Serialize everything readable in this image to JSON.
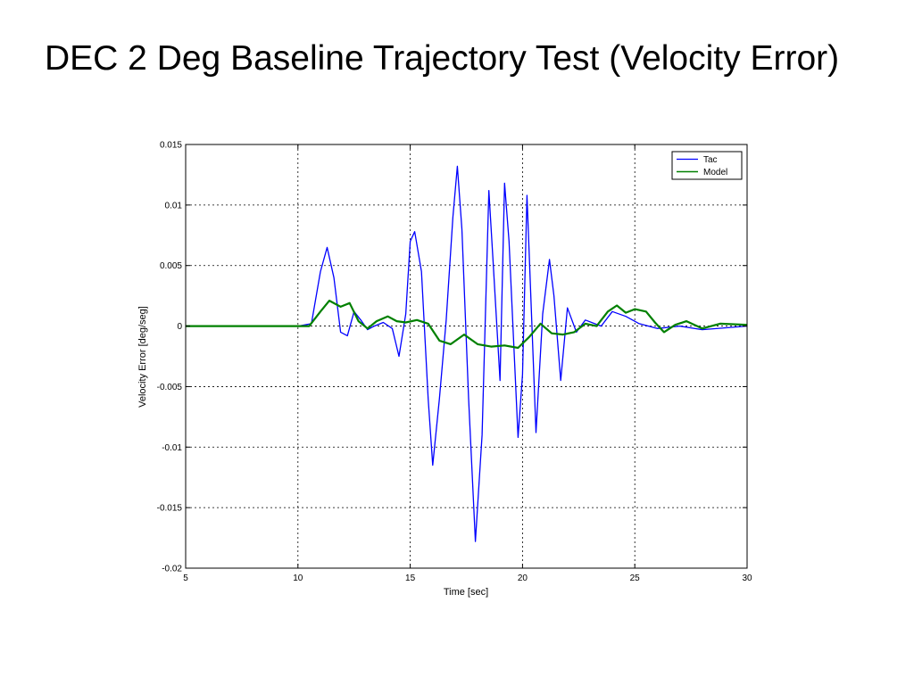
{
  "slide": {
    "title": "DEC 2 Deg Baseline Trajectory Test (Velocity Error)"
  },
  "chart_data": {
    "type": "line",
    "xlabel": "Time [sec]",
    "ylabel": "Velocity Error [deg/seg]",
    "xlim": [
      5,
      30
    ],
    "ylim": [
      -0.02,
      0.015
    ],
    "xticks": [
      5,
      10,
      15,
      20,
      25,
      30
    ],
    "xtick_labels": [
      "5",
      "10",
      "15",
      "20",
      "25",
      "30"
    ],
    "yticks": [
      0.015,
      0.01,
      0.005,
      0,
      -0.005,
      -0.01,
      -0.015,
      -0.02
    ],
    "ytick_labels": [
      "0.015",
      "0.01",
      "0.005",
      "0",
      "-0.005",
      "-0.01",
      "-0.015",
      "-0.02"
    ],
    "grid": true,
    "legend": "top-right",
    "series": [
      {
        "name": "Tac",
        "color": "#0000ff",
        "x": [
          5,
          10,
          10.6,
          11.0,
          11.3,
          11.6,
          11.9,
          12.2,
          12.5,
          12.8,
          13.1,
          13.4,
          13.8,
          14.2,
          14.5,
          14.8,
          15.0,
          15.2,
          15.5,
          15.8,
          16.0,
          16.3,
          16.6,
          16.9,
          17.1,
          17.3,
          17.6,
          17.9,
          18.2,
          18.5,
          18.7,
          19.0,
          19.2,
          19.4,
          19.8,
          20.0,
          20.2,
          20.6,
          20.9,
          21.2,
          21.4,
          21.7,
          22.0,
          22.4,
          22.8,
          23.5,
          24.0,
          24.6,
          25.2,
          26.0,
          27.0,
          28.0,
          30.0
        ],
        "y": [
          0.0,
          0.0,
          0.0002,
          0.0045,
          0.0065,
          0.004,
          -0.0005,
          -0.0008,
          0.0012,
          0.0005,
          -0.0003,
          0.0,
          0.0003,
          -0.0002,
          -0.0025,
          0.001,
          0.007,
          0.0078,
          0.0045,
          -0.006,
          -0.0115,
          -0.006,
          0.0005,
          0.009,
          0.0132,
          0.008,
          -0.006,
          -0.0178,
          -0.009,
          0.0112,
          0.005,
          -0.0045,
          0.0118,
          0.007,
          -0.0092,
          -0.004,
          0.0108,
          -0.0088,
          0.001,
          0.0055,
          0.0025,
          -0.0045,
          0.0015,
          -0.0005,
          0.0005,
          0.0,
          0.0012,
          0.0008,
          0.0002,
          -0.0002,
          0.0,
          -0.0003,
          0.0
        ]
      },
      {
        "name": "Model",
        "color": "#008000",
        "x": [
          5,
          10.5,
          11.0,
          11.4,
          11.9,
          12.3,
          12.7,
          13.1,
          13.5,
          14.0,
          14.4,
          14.8,
          15.3,
          15.8,
          16.3,
          16.8,
          17.4,
          18.0,
          18.6,
          19.2,
          19.8,
          20.3,
          20.8,
          21.3,
          21.8,
          22.3,
          22.8,
          23.3,
          23.8,
          24.2,
          24.6,
          25.0,
          25.5,
          25.9,
          26.3,
          26.8,
          27.3,
          28.0,
          28.8,
          30.0
        ],
        "y": [
          0.0,
          0.0,
          0.0012,
          0.0021,
          0.0016,
          0.0019,
          0.0004,
          -0.0002,
          0.0004,
          0.0008,
          0.0004,
          0.0003,
          0.0005,
          0.0002,
          -0.0012,
          -0.0015,
          -0.0007,
          -0.0015,
          -0.0017,
          -0.0016,
          -0.0018,
          -0.0009,
          0.0002,
          -0.0006,
          -0.0007,
          -0.0005,
          0.0002,
          0.0,
          0.0012,
          0.0017,
          0.0011,
          0.0014,
          0.0012,
          0.0003,
          -0.0005,
          0.0001,
          0.0004,
          -0.0002,
          0.0002,
          0.0001
        ]
      }
    ]
  }
}
